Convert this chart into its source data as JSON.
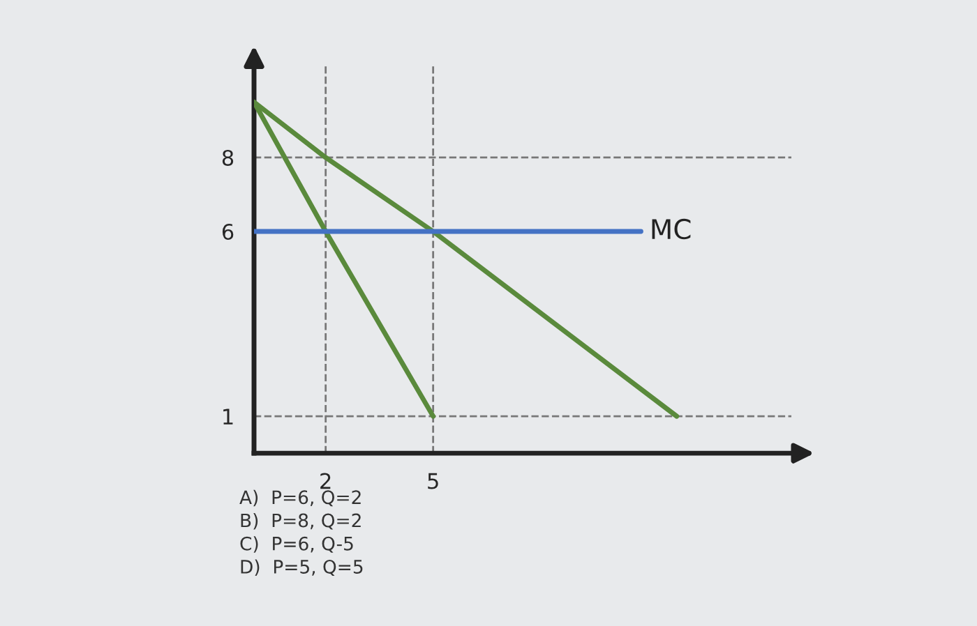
{
  "chart_data": {
    "type": "line",
    "series": [
      {
        "color": "#5a8a3c",
        "x": [
          0,
          2,
          5,
          11.8
        ],
        "values": [
          9.5,
          8,
          6,
          1
        ]
      },
      {
        "color": "#5a8a3c",
        "x": [
          0,
          2,
          5
        ],
        "values": [
          9.5,
          6,
          1
        ]
      },
      {
        "name": "MC",
        "color": "#4472c4",
        "x": [
          0,
          10.8
        ],
        "values": [
          6,
          6
        ]
      }
    ],
    "xlim": [
      0,
      15
    ],
    "ylim": [
      0,
      10.5
    ],
    "xticks": [
      2,
      5
    ],
    "yticks": [
      1,
      6,
      8
    ],
    "ref_lines": [
      {
        "axis": "x",
        "value": 2,
        "line_style": "dashed",
        "color": "#777777"
      },
      {
        "axis": "x",
        "value": 5,
        "line_style": "dashed",
        "color": "#777777"
      },
      {
        "axis": "y",
        "value": 8,
        "line_style": "dashed",
        "color": "#777777"
      },
      {
        "axis": "y",
        "value": 1,
        "line_style": "dashed",
        "color": "#777777"
      }
    ],
    "grid": false,
    "legend": false,
    "marker": "none",
    "line_style": "solid",
    "annotations": [
      "A)  P=6, Q=2",
      "B)  P=8, Q=2",
      "C)  P=6, Q-5",
      "D)  P=5, Q=5"
    ]
  }
}
